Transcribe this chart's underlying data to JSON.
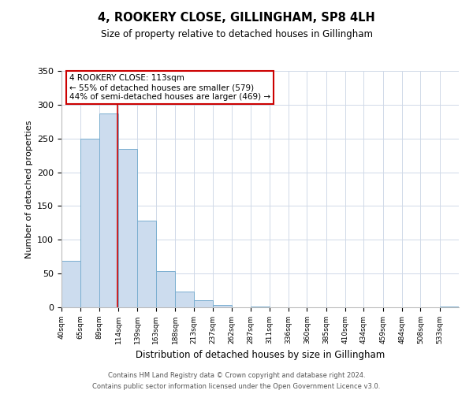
{
  "title": "4, ROOKERY CLOSE, GILLINGHAM, SP8 4LH",
  "subtitle": "Size of property relative to detached houses in Gillingham",
  "xlabel": "Distribution of detached houses by size in Gillingham",
  "ylabel": "Number of detached properties",
  "bar_color": "#ccdcee",
  "bar_edge_color": "#7aaed0",
  "bin_labels": [
    "40sqm",
    "65sqm",
    "89sqm",
    "114sqm",
    "139sqm",
    "163sqm",
    "188sqm",
    "213sqm",
    "237sqm",
    "262sqm",
    "287sqm",
    "311sqm",
    "336sqm",
    "360sqm",
    "385sqm",
    "410sqm",
    "434sqm",
    "459sqm",
    "484sqm",
    "508sqm",
    "533sqm"
  ],
  "bin_edges": [
    40,
    65,
    89,
    114,
    139,
    163,
    188,
    213,
    237,
    262,
    287,
    311,
    336,
    360,
    385,
    410,
    434,
    459,
    484,
    508,
    533
  ],
  "bar_heights": [
    69,
    250,
    287,
    235,
    128,
    54,
    23,
    10,
    4,
    0,
    1,
    0,
    0,
    0,
    0,
    0,
    0,
    0,
    0,
    0,
    1
  ],
  "property_line_x": 113,
  "property_line_color": "#cc0000",
  "annotation_title": "4 ROOKERY CLOSE: 113sqm",
  "annotation_line1": "← 55% of detached houses are smaller (579)",
  "annotation_line2": "44% of semi-detached houses are larger (469) →",
  "annotation_box_color": "#cc0000",
  "ylim": [
    0,
    350
  ],
  "yticks": [
    0,
    50,
    100,
    150,
    200,
    250,
    300,
    350
  ],
  "grid_color": "#d0d9e8",
  "background_color": "#ffffff",
  "footnote1": "Contains HM Land Registry data © Crown copyright and database right 2024.",
  "footnote2": "Contains public sector information licensed under the Open Government Licence v3.0."
}
